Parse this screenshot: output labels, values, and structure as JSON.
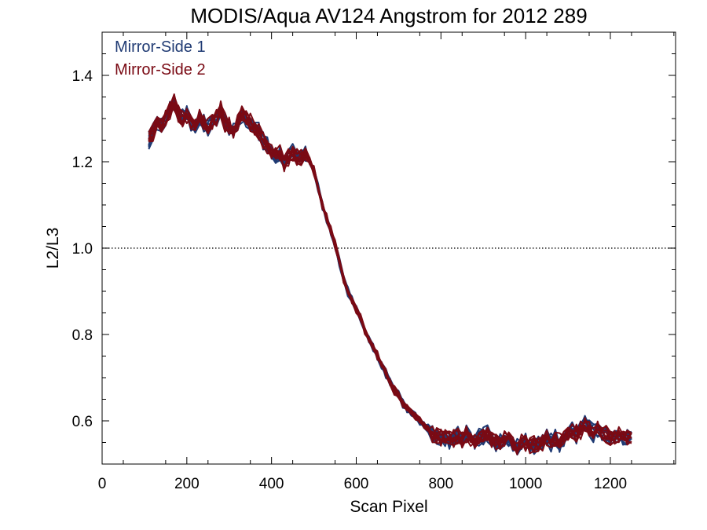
{
  "chart_data": {
    "type": "line",
    "title": "MODIS/Aqua AV124 Angstrom for 2012 289",
    "xlabel": "Scan Pixel",
    "ylabel": "L2/L3",
    "xlim": [
      0,
      1354
    ],
    "ylim": [
      0.5,
      1.5
    ],
    "x_ticks": [
      0,
      200,
      400,
      600,
      800,
      1000,
      1200
    ],
    "x_tick_labels": [
      "0",
      "200",
      "400",
      "600",
      "800",
      "1000",
      "1200"
    ],
    "y_ticks": [
      0.6,
      0.8,
      1.0,
      1.2,
      1.4
    ],
    "y_tick_labels": [
      "0.6",
      "0.8",
      "1.0",
      "1.2",
      "1.4"
    ],
    "reference_line": {
      "y": 1.0,
      "style": "dotted"
    },
    "legend": {
      "position": "top-left"
    },
    "colors": {
      "mirror_side_1": "#1f3a73",
      "mirror_side_2": "#7a0a14"
    },
    "base_x": [
      110,
      120,
      130,
      140,
      150,
      160,
      170,
      180,
      190,
      200,
      210,
      220,
      230,
      240,
      250,
      260,
      270,
      280,
      290,
      300,
      310,
      320,
      330,
      340,
      350,
      360,
      370,
      380,
      390,
      400,
      410,
      420,
      430,
      440,
      450,
      460,
      470,
      480,
      490,
      500,
      510,
      520,
      530,
      540,
      550,
      560,
      570,
      580,
      590,
      600,
      610,
      620,
      630,
      640,
      650,
      660,
      670,
      680,
      690,
      700,
      710,
      720,
      730,
      740,
      750,
      760,
      770,
      780,
      790,
      800,
      810,
      820,
      830,
      840,
      850,
      860,
      870,
      880,
      890,
      900,
      910,
      920,
      930,
      940,
      950,
      960,
      970,
      980,
      990,
      1000,
      1010,
      1020,
      1030,
      1040,
      1050,
      1060,
      1070,
      1080,
      1090,
      1100,
      1110,
      1120,
      1130,
      1140,
      1150,
      1160,
      1170,
      1180,
      1190,
      1200,
      1210,
      1220,
      1230,
      1240,
      1250
    ],
    "base_y": [
      1.25,
      1.27,
      1.29,
      1.28,
      1.3,
      1.32,
      1.34,
      1.31,
      1.3,
      1.31,
      1.29,
      1.28,
      1.3,
      1.29,
      1.28,
      1.29,
      1.3,
      1.32,
      1.29,
      1.28,
      1.27,
      1.29,
      1.31,
      1.3,
      1.29,
      1.28,
      1.27,
      1.25,
      1.24,
      1.22,
      1.21,
      1.22,
      1.2,
      1.21,
      1.22,
      1.21,
      1.21,
      1.22,
      1.2,
      1.18,
      1.14,
      1.1,
      1.07,
      1.04,
      1.01,
      0.97,
      0.93,
      0.9,
      0.88,
      0.86,
      0.84,
      0.81,
      0.79,
      0.77,
      0.75,
      0.73,
      0.71,
      0.69,
      0.67,
      0.66,
      0.64,
      0.63,
      0.62,
      0.61,
      0.6,
      0.59,
      0.58,
      0.57,
      0.565,
      0.56,
      0.56,
      0.555,
      0.56,
      0.565,
      0.56,
      0.57,
      0.56,
      0.55,
      0.56,
      0.565,
      0.57,
      0.56,
      0.55,
      0.55,
      0.56,
      0.555,
      0.55,
      0.54,
      0.55,
      0.55,
      0.54,
      0.545,
      0.55,
      0.55,
      0.56,
      0.55,
      0.56,
      0.55,
      0.56,
      0.57,
      0.58,
      0.57,
      0.58,
      0.59,
      0.58,
      0.57,
      0.58,
      0.57,
      0.57,
      0.56,
      0.56,
      0.57,
      0.56,
      0.56,
      0.56
    ],
    "series": [
      {
        "name": "Mirror-Side 1",
        "line_count": 10
      },
      {
        "name": "Mirror-Side 2",
        "line_count": 10
      }
    ]
  }
}
